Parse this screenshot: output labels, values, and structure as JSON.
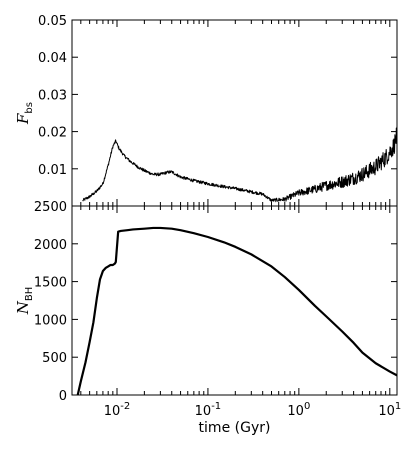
{
  "chart_data": [
    {
      "type": "line",
      "panel": "top",
      "ylabel": "F",
      "ylabel_sub": "bs",
      "xscale": "log",
      "xlim": [
        0.0032,
        12
      ],
      "ylim": [
        0.0,
        0.05
      ],
      "yticks": [
        0.01,
        0.02,
        0.03,
        0.04,
        0.05
      ],
      "ytick_labels": [
        "0.01",
        "0.02",
        "0.03",
        "0.04",
        "0.05"
      ],
      "grid": false,
      "series": [
        {
          "color": "#000000",
          "noisy": true,
          "x": [
            0.0042,
            0.005,
            0.006,
            0.007,
            0.008,
            0.009,
            0.0097,
            0.0105,
            0.012,
            0.014,
            0.017,
            0.02,
            0.025,
            0.03,
            0.035,
            0.04,
            0.05,
            0.07,
            0.1,
            0.15,
            0.2,
            0.3,
            0.4,
            0.5,
            0.7,
            1.0,
            1.5,
            2.0,
            3.0,
            4.0,
            5.0,
            7.0,
            9.0,
            11.0,
            12.0
          ],
          "y": [
            0.0015,
            0.0025,
            0.004,
            0.006,
            0.011,
            0.016,
            0.0175,
            0.0155,
            0.0135,
            0.012,
            0.0105,
            0.0095,
            0.0085,
            0.0085,
            0.009,
            0.0092,
            0.0078,
            0.0068,
            0.006,
            0.0052,
            0.0047,
            0.0038,
            0.0032,
            0.0015,
            0.0018,
            0.0035,
            0.0045,
            0.0055,
            0.0065,
            0.0075,
            0.0085,
            0.0105,
            0.013,
            0.016,
            0.019
          ]
        }
      ]
    },
    {
      "type": "line",
      "panel": "bottom",
      "ylabel": "N",
      "ylabel_sub": "BH",
      "xlabel": "time (Gyr)",
      "xscale": "log",
      "xlim": [
        0.0032,
        12
      ],
      "ylim": [
        0,
        2500
      ],
      "yticks": [
        0,
        500,
        1000,
        1500,
        2000,
        2500
      ],
      "ytick_labels": [
        "0",
        "500",
        "1000",
        "1500",
        "2000",
        "2500"
      ],
      "xticks": [
        0.01,
        0.1,
        1,
        10
      ],
      "xtick_labels": [
        {
          "base": "10",
          "exp": "-2"
        },
        {
          "base": "10",
          "exp": "-1"
        },
        {
          "base": "10",
          "exp": "0"
        },
        {
          "base": "10",
          "exp": "1"
        }
      ],
      "grid": false,
      "series": [
        {
          "color": "#000000",
          "x": [
            0.0037,
            0.004,
            0.0045,
            0.005,
            0.0055,
            0.006,
            0.0065,
            0.007,
            0.0075,
            0.008,
            0.0085,
            0.009,
            0.0095,
            0.0097,
            0.0103,
            0.011,
            0.013,
            0.015,
            0.02,
            0.025,
            0.03,
            0.04,
            0.05,
            0.07,
            0.1,
            0.15,
            0.2,
            0.3,
            0.5,
            0.7,
            1.0,
            1.5,
            2.0,
            3.0,
            4.0,
            5.0,
            7.0,
            10.0,
            12.0
          ],
          "y": [
            0,
            180,
            430,
            700,
            960,
            1280,
            1530,
            1640,
            1680,
            1700,
            1720,
            1720,
            1740,
            1760,
            2160,
            2170,
            2180,
            2190,
            2200,
            2210,
            2210,
            2200,
            2180,
            2140,
            2090,
            2020,
            1960,
            1860,
            1700,
            1560,
            1390,
            1180,
            1040,
            840,
            690,
            560,
            420,
            310,
            260
          ]
        }
      ]
    }
  ]
}
